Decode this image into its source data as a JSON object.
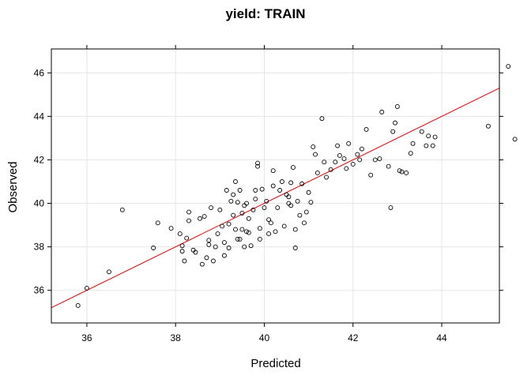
{
  "chart_data": {
    "type": "scatter",
    "title": "yield: TRAIN",
    "xlabel": "Predicted",
    "ylabel": "Observed",
    "xlim": [
      35.2,
      45.3
    ],
    "ylim": [
      34.5,
      47.1
    ],
    "x_ticks": [
      36,
      38,
      40,
      42,
      44
    ],
    "y_ticks": [
      36,
      38,
      40,
      42,
      44,
      46
    ],
    "grid": true,
    "point_color": "#000000",
    "line_color": "#e00000",
    "reference_line": {
      "type": "identity",
      "x": [
        35.2,
        45.3
      ],
      "y": [
        35.2,
        45.3
      ]
    },
    "points": [
      [
        35.8,
        35.3
      ],
      [
        36.0,
        36.1
      ],
      [
        36.5,
        36.85
      ],
      [
        36.8,
        39.7
      ],
      [
        37.5,
        37.95
      ],
      [
        37.6,
        39.1
      ],
      [
        37.9,
        38.85
      ],
      [
        38.1,
        38.6
      ],
      [
        38.15,
        38.05
      ],
      [
        38.15,
        37.8
      ],
      [
        38.2,
        37.35
      ],
      [
        38.25,
        38.4
      ],
      [
        38.3,
        39.6
      ],
      [
        38.3,
        39.2
      ],
      [
        38.4,
        37.85
      ],
      [
        38.45,
        37.75
      ],
      [
        38.55,
        39.3
      ],
      [
        38.6,
        37.2
      ],
      [
        38.65,
        39.4
      ],
      [
        38.7,
        37.5
      ],
      [
        38.75,
        38.1
      ],
      [
        38.75,
        38.3
      ],
      [
        38.8,
        39.8
      ],
      [
        38.85,
        37.35
      ],
      [
        38.9,
        38.0
      ],
      [
        38.95,
        38.6
      ],
      [
        39.0,
        39.7
      ],
      [
        39.05,
        38.95
      ],
      [
        39.1,
        37.6
      ],
      [
        39.1,
        38.2
      ],
      [
        39.15,
        40.6
      ],
      [
        39.2,
        37.95
      ],
      [
        39.2,
        39.05
      ],
      [
        39.25,
        40.1
      ],
      [
        39.3,
        39.45
      ],
      [
        39.3,
        40.4
      ],
      [
        39.35,
        38.8
      ],
      [
        39.35,
        41.0
      ],
      [
        39.4,
        40.05
      ],
      [
        39.4,
        38.35
      ],
      [
        39.45,
        38.35
      ],
      [
        39.45,
        40.6
      ],
      [
        39.5,
        39.55
      ],
      [
        39.5,
        38.8
      ],
      [
        39.55,
        39.9
      ],
      [
        39.55,
        38.0
      ],
      [
        39.6,
        38.7
      ],
      [
        39.6,
        40.0
      ],
      [
        39.65,
        39.3
      ],
      [
        39.65,
        38.65
      ],
      [
        39.7,
        38.05
      ],
      [
        39.75,
        39.7
      ],
      [
        39.8,
        40.2
      ],
      [
        39.8,
        40.6
      ],
      [
        39.85,
        41.7
      ],
      [
        39.85,
        41.85
      ],
      [
        39.9,
        38.85
      ],
      [
        39.9,
        38.35
      ],
      [
        39.95,
        40.65
      ],
      [
        40.0,
        39.8
      ],
      [
        40.05,
        40.1
      ],
      [
        40.1,
        38.6
      ],
      [
        40.1,
        39.25
      ],
      [
        40.15,
        39.1
      ],
      [
        40.2,
        41.5
      ],
      [
        40.2,
        40.8
      ],
      [
        40.25,
        38.7
      ],
      [
        40.3,
        39.8
      ],
      [
        40.35,
        40.6
      ],
      [
        40.4,
        41.0
      ],
      [
        40.45,
        38.95
      ],
      [
        40.5,
        40.4
      ],
      [
        40.55,
        40.3
      ],
      [
        40.55,
        40.0
      ],
      [
        40.6,
        39.9
      ],
      [
        40.6,
        40.95
      ],
      [
        40.65,
        41.65
      ],
      [
        40.7,
        37.95
      ],
      [
        40.7,
        38.8
      ],
      [
        40.75,
        40.1
      ],
      [
        40.8,
        39.45
      ],
      [
        40.85,
        40.9
      ],
      [
        40.9,
        39.1
      ],
      [
        40.95,
        39.6
      ],
      [
        41.0,
        40.5
      ],
      [
        41.05,
        40.05
      ],
      [
        41.1,
        42.6
      ],
      [
        41.15,
        42.25
      ],
      [
        41.2,
        41.4
      ],
      [
        41.3,
        43.9
      ],
      [
        41.35,
        41.9
      ],
      [
        41.4,
        41.2
      ],
      [
        41.5,
        41.55
      ],
      [
        41.6,
        41.9
      ],
      [
        41.65,
        42.65
      ],
      [
        41.7,
        42.2
      ],
      [
        41.8,
        42.05
      ],
      [
        41.85,
        41.6
      ],
      [
        41.9,
        42.75
      ],
      [
        42.0,
        41.8
      ],
      [
        42.1,
        42.25
      ],
      [
        42.15,
        42.0
      ],
      [
        42.2,
        42.5
      ],
      [
        42.3,
        43.4
      ],
      [
        42.4,
        41.3
      ],
      [
        42.5,
        42.0
      ],
      [
        42.6,
        42.05
      ],
      [
        42.65,
        44.2
      ],
      [
        42.8,
        41.7
      ],
      [
        42.85,
        39.8
      ],
      [
        42.9,
        43.3
      ],
      [
        42.95,
        43.7
      ],
      [
        43.0,
        44.45
      ],
      [
        43.05,
        41.5
      ],
      [
        43.1,
        41.45
      ],
      [
        43.2,
        41.4
      ],
      [
        43.3,
        42.3
      ],
      [
        43.35,
        42.75
      ],
      [
        43.55,
        43.3
      ],
      [
        43.65,
        42.65
      ],
      [
        43.7,
        43.1
      ],
      [
        43.8,
        42.65
      ],
      [
        43.85,
        43.05
      ],
      [
        45.05,
        43.55
      ],
      [
        45.5,
        46.3
      ],
      [
        45.65,
        42.95
      ]
    ]
  }
}
